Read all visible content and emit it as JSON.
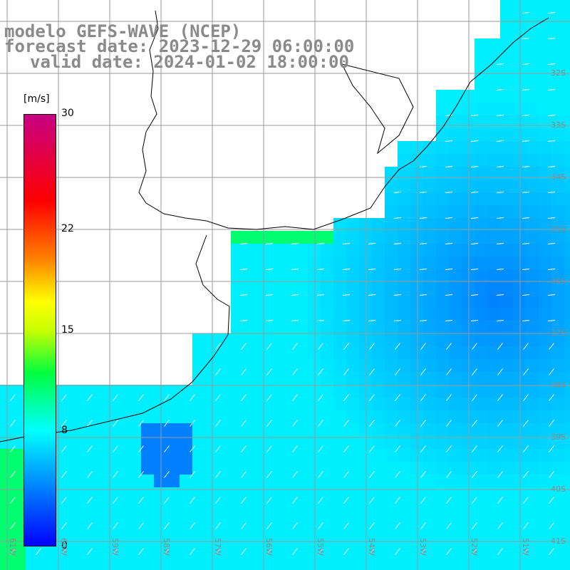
{
  "title": {
    "model": "modelo GEFS-WAVE (NCEP)",
    "forecast": "forecast date: 2023-12-29 06:00:00",
    "valid": "valid date: 2024-01-02 18:00:00"
  },
  "colorbar": {
    "unit": "[m/s]",
    "ticks": [
      "30",
      "22",
      "15",
      "8",
      "0"
    ],
    "tick_values": [
      30,
      22,
      15,
      8,
      0
    ],
    "range": [
      0,
      30
    ]
  },
  "axes": {
    "lat_labels": [
      "32S",
      "33S",
      "34S",
      "35S",
      "36S",
      "37S",
      "38S",
      "39S",
      "40S",
      "41S"
    ],
    "lon_labels": [
      "61W",
      "60W",
      "59W",
      "58W",
      "57W",
      "56W",
      "55W",
      "54W",
      "53W",
      "52W",
      "51W"
    ]
  },
  "colors": {
    "land": "#ffffff",
    "grid": "#9a9a9a",
    "coast": "#000000",
    "arrow": "#ffffff",
    "label_gray": "#8a8a8a"
  }
}
